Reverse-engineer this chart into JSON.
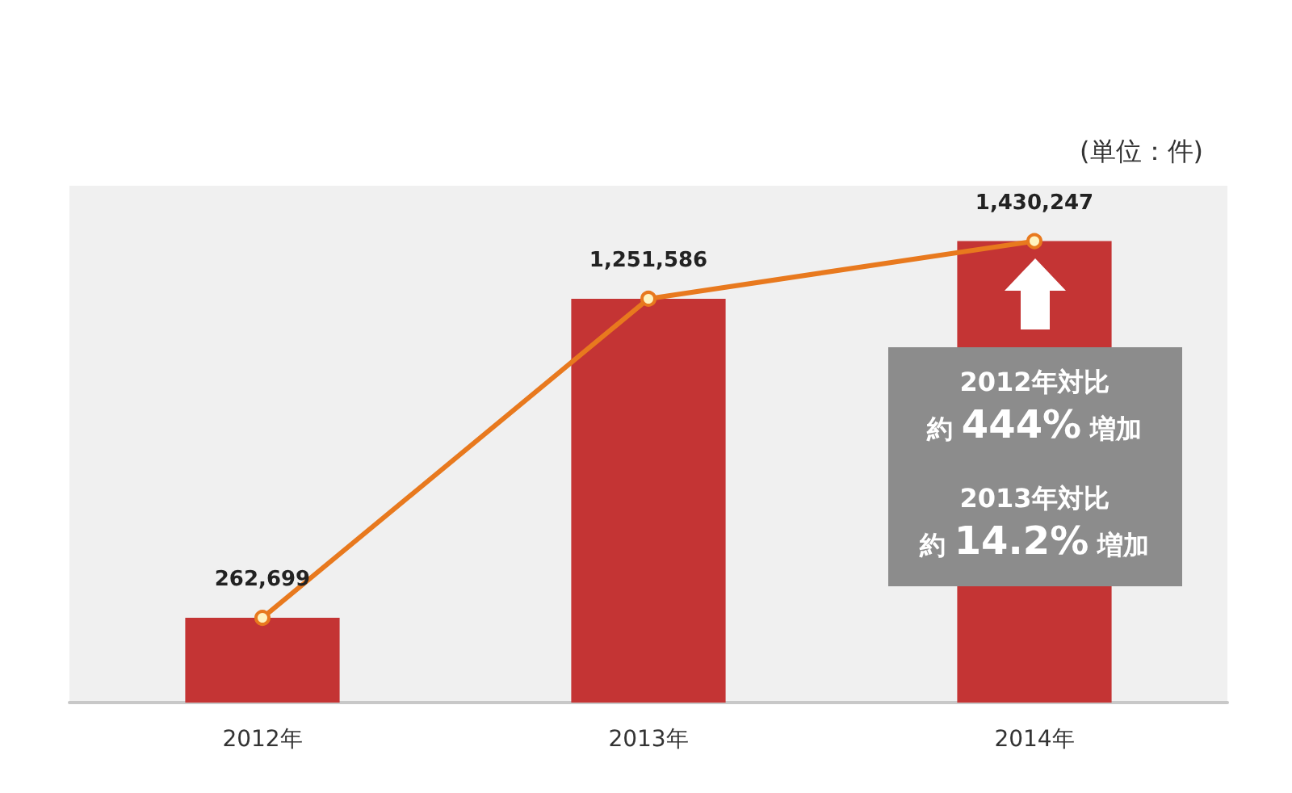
{
  "chart_data": {
    "type": "bar",
    "categories": [
      "2012年",
      "2013年",
      "2014年"
    ],
    "series": [
      {
        "color": "#c43434",
        "values": [
          262699,
          1251586,
          1430247
        ]
      },
      {
        "type": "line",
        "color": "#e8791e",
        "values": [
          262699,
          1251586,
          1430247
        ],
        "value_labels": [
          "262,699",
          "1,251,586",
          "1,430,247"
        ]
      }
    ],
    "marker": "circle",
    "line_style": "solid",
    "tick_labels": "x",
    "annotations": [
      "(単位：件)",
      "2012年対比",
      "約 444% 増加",
      "2013年対比",
      "約 14.2% 増加"
    ]
  }
}
